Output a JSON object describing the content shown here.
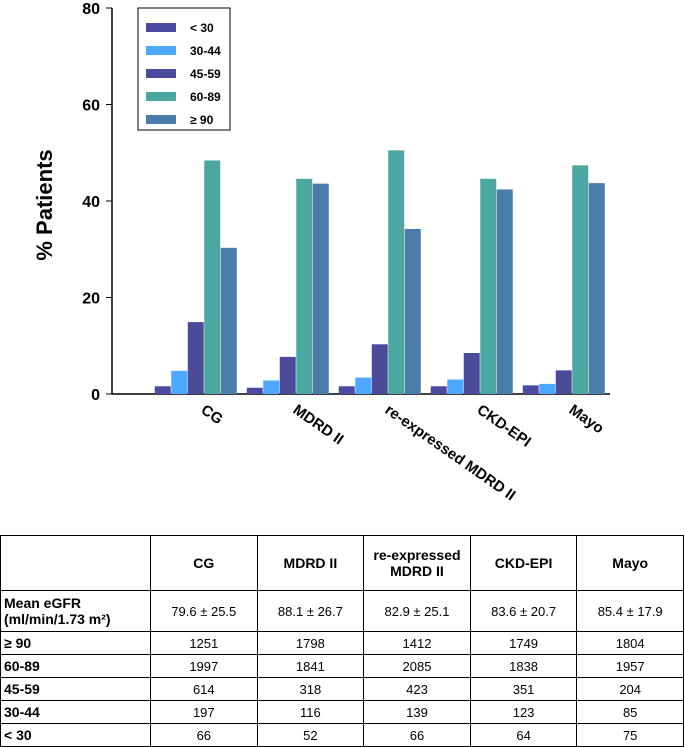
{
  "chart_data": {
    "type": "bar",
    "y_label": "% Patients",
    "categories": [
      "CG",
      "MDRD II",
      "re-expressed MDRD II",
      "CKD-EPI",
      "Mayo"
    ],
    "series": [
      {
        "name": "< 30",
        "color": "#4b4ba3",
        "values": [
          1.6,
          1.3,
          1.6,
          1.6,
          1.8
        ]
      },
      {
        "name": "30-44",
        "color": "#4fa8ff",
        "values": [
          4.8,
          2.8,
          3.4,
          3.0,
          2.1
        ]
      },
      {
        "name": "45-59",
        "color": "#4b4b99",
        "values": [
          14.9,
          7.7,
          10.3,
          8.5,
          4.9
        ]
      },
      {
        "name": "60-89",
        "color": "#4ba7a1",
        "values": [
          48.4,
          44.6,
          50.5,
          44.6,
          47.4
        ]
      },
      {
        "name": "≥ 90",
        "color": "#4a7caa",
        "values": [
          30.3,
          43.6,
          34.2,
          42.4,
          43.7
        ]
      }
    ],
    "ylim": [
      0,
      80
    ],
    "yticks": [
      0,
      20,
      40,
      60,
      80
    ],
    "legend": "upper-left"
  },
  "table": {
    "columns": [
      "CG",
      "MDRD II",
      "re-expressed MDRD II",
      "CKD-EPI",
      "Mayo"
    ],
    "rows": [
      {
        "label": "Mean eGFR (ml/min/1.73 m²)",
        "values": [
          "79.6 ± 25.5",
          "88.1 ± 26.7",
          "82.9 ± 25.1",
          "83.6 ± 20.7",
          "85.4 ± 17.9"
        ]
      },
      {
        "label": "≥ 90",
        "values": [
          1251,
          1798,
          1412,
          1749,
          1804
        ]
      },
      {
        "label": "60-89",
        "values": [
          1997,
          1841,
          2085,
          1838,
          1957
        ]
      },
      {
        "label": "45-59",
        "values": [
          614,
          318,
          423,
          351,
          204
        ]
      },
      {
        "label": "30-44",
        "values": [
          197,
          116,
          139,
          123,
          85
        ]
      },
      {
        "label": "< 30",
        "values": [
          66,
          52,
          66,
          64,
          75
        ]
      }
    ]
  }
}
